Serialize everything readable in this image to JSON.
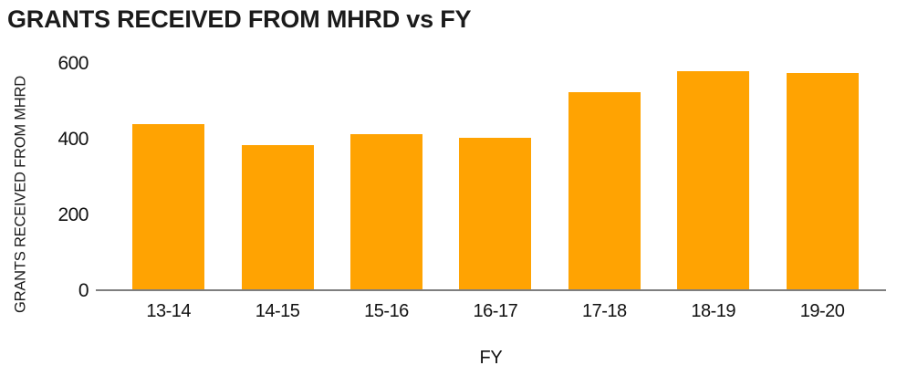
{
  "page": {
    "background_color": "#ffffff",
    "text_color": "#1b1b1b"
  },
  "chart_data": {
    "type": "bar",
    "title": "GRANTS RECEIVED FROM MHRD vs FY",
    "xlabel": "FY",
    "ylabel": "GRANTS RECEIVED FROM MHRD",
    "categories": [
      "13-14",
      "14-15",
      "15-16",
      "16-17",
      "17-18",
      "18-19",
      "19-20"
    ],
    "values": [
      440,
      385,
      415,
      405,
      525,
      580,
      575
    ],
    "ylim": [
      0,
      600
    ],
    "yticks": [
      0,
      200,
      400,
      600
    ],
    "bar_color": "#ffa302",
    "axis_color": "#7f7f7f",
    "grid": false,
    "legend_position": "none"
  }
}
